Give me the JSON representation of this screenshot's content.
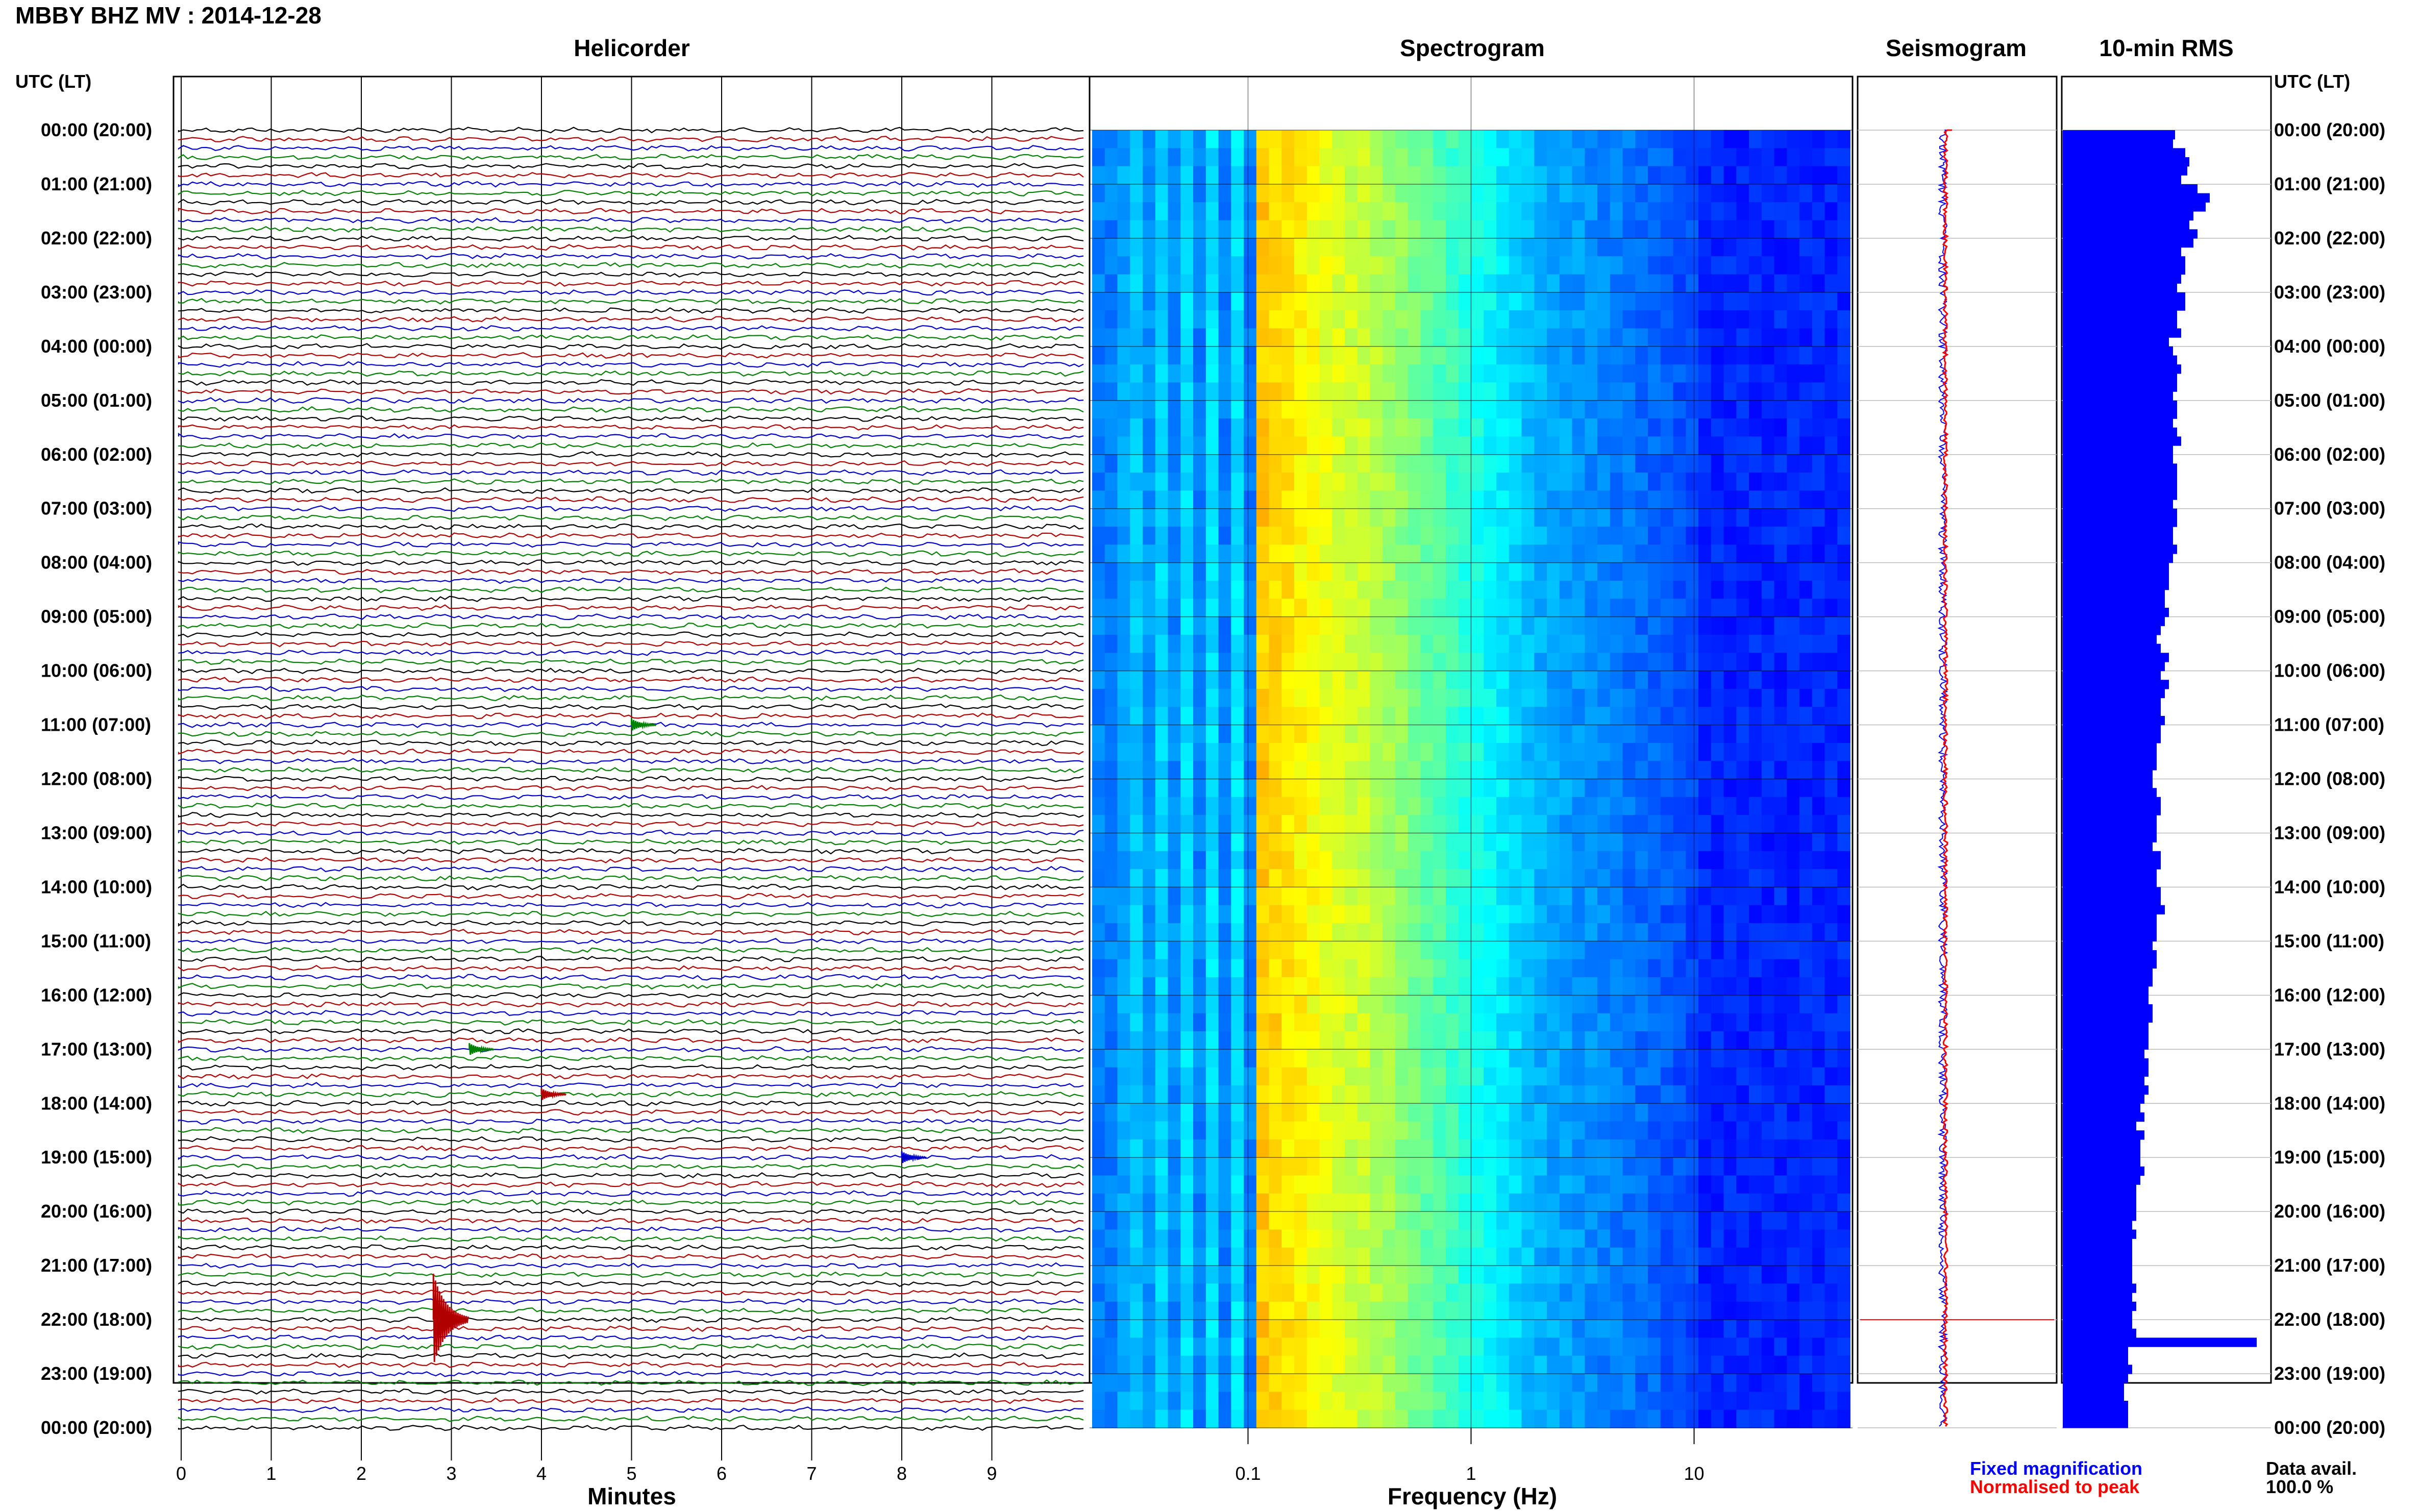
{
  "figure_title": "MBBY BHZ MV : 2014-12-28",
  "utc_lt_label": "UTC (LT)",
  "time_labels": [
    "00:00 (20:00)",
    "01:00 (21:00)",
    "02:00 (22:00)",
    "03:00 (23:00)",
    "04:00 (00:00)",
    "05:00 (01:00)",
    "06:00 (02:00)",
    "07:00 (03:00)",
    "08:00 (04:00)",
    "09:00 (05:00)",
    "10:00 (06:00)",
    "11:00 (07:00)",
    "12:00 (08:00)",
    "13:00 (09:00)",
    "14:00 (10:00)",
    "15:00 (11:00)",
    "16:00 (12:00)",
    "17:00 (13:00)",
    "18:00 (14:00)",
    "19:00 (15:00)",
    "20:00 (16:00)",
    "21:00 (17:00)",
    "22:00 (18:00)",
    "23:00 (19:00)",
    "00:00 (20:00)"
  ],
  "colors": {
    "trace_cycle": [
      "#000000",
      "#b00000",
      "#0000cc",
      "#008000"
    ],
    "rms_bar": "#0000ff",
    "seismo_norm": "#ff0000",
    "seismo_fixed": "#0000ff",
    "legend_fixed": "#0000ff",
    "legend_norm": "#ff0000"
  },
  "legend": {
    "fixed": "Fixed magnification",
    "normalised": "Normalised to peak",
    "data_avail_label": "Data avail.",
    "data_avail_value": "100.0 %"
  },
  "chart_data": [
    {
      "type": "line",
      "title": "Helicorder",
      "xlabel": "Minutes",
      "x_ticks": [
        "0",
        "1",
        "2",
        "3",
        "4",
        "5",
        "6",
        "7",
        "8",
        "9"
      ],
      "xlim": [
        0,
        10
      ],
      "lines_per_hour": 6,
      "n_lines": 144,
      "events": [
        {
          "time_utc": "22:00",
          "minute": 2.8,
          "color": "#b00000",
          "note": "largest event"
        },
        {
          "time_utc": "11:00",
          "minute": 5.0,
          "color": "#008000"
        },
        {
          "time_utc": "19:00",
          "minute": 8.0,
          "color": "#0000cc"
        },
        {
          "time_utc": "17:00",
          "minute": 3.2,
          "color": "#008000"
        },
        {
          "time_utc": "17:50",
          "minute": 4.0,
          "color": "#b00000"
        }
      ]
    },
    {
      "type": "heatmap",
      "title": "Spectrogram",
      "xlabel": "Frequency (Hz)",
      "x_ticks": [
        "0.1",
        "1",
        "10"
      ],
      "x_scale": "log",
      "xlim": [
        0.02,
        50
      ],
      "peak_band_hz": [
        0.12,
        0.3
      ],
      "colormap": "jet"
    },
    {
      "type": "line",
      "title": "Seismogram",
      "display": "24 h trace, fixed magnification (blue) and normalised to peak (red)",
      "spike_time_utc": "22:00"
    },
    {
      "type": "bar",
      "title": "10-min RMS",
      "orientation": "horizontal",
      "values": [
        0.55,
        0.54,
        0.6,
        0.62,
        0.61,
        0.58,
        0.66,
        0.72,
        0.7,
        0.64,
        0.62,
        0.66,
        0.64,
        0.58,
        0.6,
        0.6,
        0.58,
        0.56,
        0.6,
        0.6,
        0.56,
        0.56,
        0.58,
        0.52,
        0.54,
        0.56,
        0.58,
        0.56,
        0.56,
        0.54,
        0.56,
        0.56,
        0.54,
        0.56,
        0.58,
        0.54,
        0.54,
        0.56,
        0.56,
        0.56,
        0.56,
        0.54,
        0.56,
        0.56,
        0.54,
        0.54,
        0.56,
        0.54,
        0.52,
        0.52,
        0.52,
        0.5,
        0.5,
        0.52,
        0.5,
        0.48,
        0.46,
        0.48,
        0.52,
        0.5,
        0.48,
        0.52,
        0.5,
        0.48,
        0.48,
        0.5,
        0.48,
        0.48,
        0.46,
        0.46,
        0.46,
        0.44,
        0.44,
        0.46,
        0.48,
        0.48,
        0.46,
        0.46,
        0.46,
        0.44,
        0.48,
        0.48,
        0.46,
        0.46,
        0.48,
        0.48,
        0.5,
        0.46,
        0.46,
        0.46,
        0.44,
        0.46,
        0.46,
        0.44,
        0.44,
        0.42,
        0.42,
        0.44,
        0.44,
        0.42,
        0.42,
        0.42,
        0.4,
        0.42,
        0.42,
        0.4,
        0.42,
        0.4,
        0.38,
        0.4,
        0.36,
        0.4,
        0.38,
        0.38,
        0.38,
        0.4,
        0.38,
        0.36,
        0.36,
        0.36,
        0.36,
        0.34,
        0.36,
        0.34,
        0.34,
        0.34,
        0.34,
        0.34,
        0.36,
        0.34,
        0.36,
        0.34,
        0.34,
        0.36,
        0.95,
        0.32,
        0.32,
        0.34,
        0.32,
        0.3,
        0.3,
        0.32,
        0.32,
        0.32
      ],
      "xlim": [
        0,
        1
      ]
    }
  ]
}
